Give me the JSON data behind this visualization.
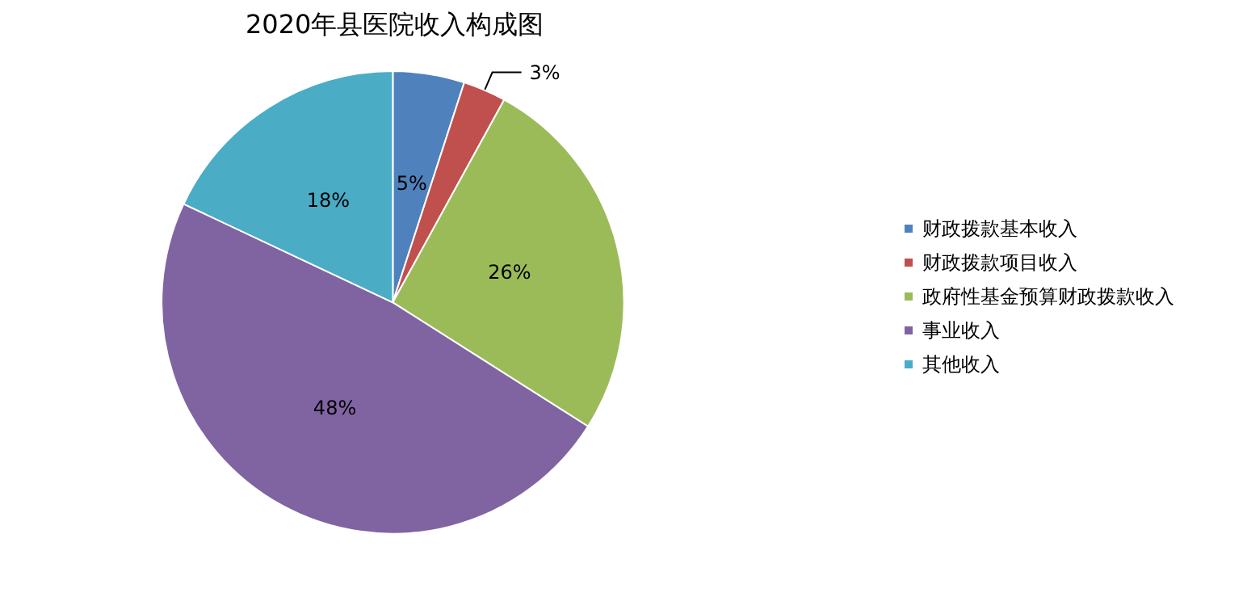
{
  "chart_data": {
    "type": "pie",
    "title": "2020年县医院收入构成图",
    "categories": [
      "财政拨款基本收入",
      "财政拨款项目收入",
      "政府性基金预算财政拨款收入",
      "事业收入",
      "其他收入"
    ],
    "values": [
      5,
      3,
      26,
      48,
      18
    ],
    "colors": [
      "#4f81bd",
      "#c0504d",
      "#9bbb59",
      "#8064a2",
      "#4bacc6"
    ],
    "value_labels": [
      "5%",
      "3%",
      "26%",
      "48%",
      "18%"
    ],
    "legend": "right"
  }
}
